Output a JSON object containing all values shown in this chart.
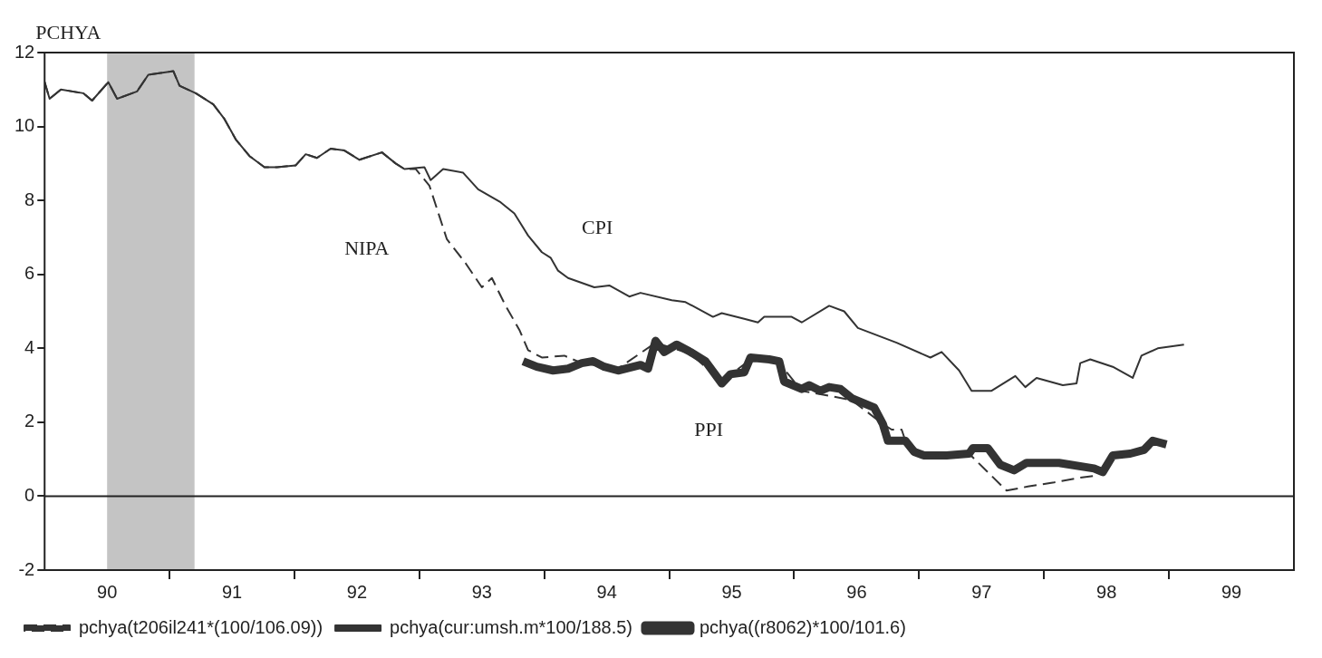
{
  "chart_data": {
    "type": "line",
    "ylabel": "PCHYA",
    "xlim": [
      89.5,
      99.5
    ],
    "xticks": [
      90,
      {
        "value": 90.5,
        "label": null
      },
      91,
      {
        "value": 91.5,
        "label": null
      },
      92,
      {
        "value": 92.5,
        "label": null
      },
      93,
      {
        "value": 93.5,
        "label": null
      },
      94,
      {
        "value": 94.5,
        "label": null
      },
      95,
      {
        "value": 95.5,
        "label": null
      },
      96,
      {
        "value": 96.5,
        "label": null
      },
      97,
      {
        "value": 97.5,
        "label": null
      },
      98,
      {
        "value": 98.5,
        "label": null
      },
      99
    ],
    "ylim": [
      -2,
      12
    ],
    "yticks": [
      -2,
      0,
      2,
      4,
      6,
      8,
      10,
      12
    ],
    "legend": "bottom left",
    "ref_lines": [
      {
        "axis": "y",
        "value": 0,
        "color": "#222222"
      }
    ],
    "bands": [
      {
        "axis": "x",
        "from": 90.0,
        "to": 90.7,
        "color": "#c4c4c4"
      }
    ],
    "annotations": [
      "NIPA",
      "CPI",
      "PPI"
    ],
    "series": [
      {
        "name": "pchya(t206il241*(100/106.09))",
        "color": "#333333",
        "line_style": "dashed",
        "x": [
          89.5,
          89.54,
          89.63,
          89.81,
          89.88,
          90.01,
          90.08,
          90.24,
          90.33,
          90.53,
          90.58,
          90.71,
          90.85,
          90.94,
          91.03,
          91.14,
          91.26,
          91.36,
          91.51,
          91.59,
          91.68,
          91.79,
          91.9,
          92.02,
          92.2,
          92.31,
          92.38,
          92.47,
          92.58,
          92.72,
          92.87,
          93.0,
          93.08,
          93.19,
          93.3,
          93.37,
          93.48,
          93.66,
          93.8,
          94.09,
          94.39,
          94.67,
          94.92,
          95.15,
          95.38,
          95.56,
          95.96,
          96.21,
          96.28,
          96.36,
          96.39,
          96.54,
          96.9,
          97.2,
          97.37,
          97.58,
          97.79,
          97.9
        ],
        "values": [
          11.2,
          10.75,
          11.0,
          10.9,
          10.7,
          11.2,
          10.75,
          10.95,
          11.4,
          11.5,
          11.1,
          10.9,
          10.6,
          10.2,
          9.65,
          9.2,
          8.9,
          8.9,
          8.95,
          9.25,
          9.15,
          9.4,
          9.35,
          9.1,
          9.3,
          9.0,
          8.85,
          8.85,
          8.4,
          6.95,
          6.3,
          5.65,
          5.9,
          5.15,
          4.5,
          3.95,
          3.75,
          3.8,
          3.6,
          3.45,
          4.15,
          3.85,
          3.1,
          3.7,
          3.6,
          2.85,
          2.6,
          1.95,
          1.8,
          1.8,
          1.5,
          1.1,
          1.15,
          0.15,
          0.26,
          0.37,
          0.5,
          0.55
        ]
      },
      {
        "name": "pchya(cur:umsh.m*100/188.5)",
        "color": "#333333",
        "line_style": "solid",
        "x": [
          89.5,
          89.54,
          89.63,
          89.81,
          89.88,
          90.01,
          90.08,
          90.24,
          90.33,
          90.53,
          90.58,
          90.71,
          90.85,
          90.94,
          91.03,
          91.14,
          91.26,
          91.36,
          91.51,
          91.59,
          91.68,
          91.79,
          91.9,
          92.02,
          92.2,
          92.31,
          92.38,
          92.54,
          92.59,
          92.69,
          92.85,
          92.97,
          93.15,
          93.26,
          93.37,
          93.48,
          93.55,
          93.61,
          93.69,
          93.9,
          94.02,
          94.18,
          94.27,
          94.52,
          94.63,
          94.85,
          94.92,
          95.1,
          95.21,
          95.26,
          95.48,
          95.56,
          95.78,
          95.9,
          96.01,
          96.32,
          96.59,
          96.68,
          96.82,
          96.92,
          97.08,
          97.27,
          97.35,
          97.44,
          97.65,
          97.76,
          97.79,
          97.87,
          98.05,
          98.21,
          98.28,
          98.41,
          98.62
        ],
        "values": [
          11.2,
          10.75,
          11.0,
          10.9,
          10.7,
          11.2,
          10.75,
          10.95,
          11.4,
          11.5,
          11.1,
          10.9,
          10.6,
          10.2,
          9.65,
          9.2,
          8.9,
          8.9,
          8.95,
          9.25,
          9.15,
          9.4,
          9.35,
          9.1,
          9.3,
          9.0,
          8.85,
          8.9,
          8.55,
          8.85,
          8.75,
          8.3,
          7.95,
          7.65,
          7.05,
          6.6,
          6.45,
          6.1,
          5.9,
          5.65,
          5.7,
          5.4,
          5.5,
          5.3,
          5.25,
          4.85,
          4.95,
          4.8,
          4.7,
          4.85,
          4.85,
          4.7,
          5.15,
          5.0,
          4.55,
          4.15,
          3.75,
          3.9,
          3.4,
          2.85,
          2.85,
          3.25,
          2.95,
          3.2,
          3.0,
          3.05,
          3.6,
          3.7,
          3.5,
          3.2,
          3.8,
          4.0,
          4.1
        ]
      },
      {
        "name": "pchya((r8062)*100/101.6)",
        "color": "#333333",
        "line_style": "solid",
        "x": [
          93.33,
          93.44,
          93.57,
          93.69,
          93.8,
          93.89,
          93.98,
          94.09,
          94.27,
          94.33,
          94.39,
          94.46,
          94.56,
          94.67,
          94.79,
          94.92,
          94.99,
          95.1,
          95.15,
          95.3,
          95.38,
          95.42,
          95.56,
          95.62,
          95.71,
          95.78,
          95.87,
          95.96,
          96.14,
          96.21,
          96.25,
          96.39,
          96.46,
          96.54,
          96.72,
          96.9,
          96.93,
          97.05,
          97.15,
          97.26,
          97.36,
          97.62,
          97.9,
          97.97,
          98.05,
          98.19,
          98.3,
          98.37,
          98.48
        ],
        "values": [
          3.65,
          3.5,
          3.4,
          3.45,
          3.6,
          3.65,
          3.5,
          3.4,
          3.55,
          3.45,
          4.2,
          3.9,
          4.1,
          3.9,
          3.65,
          3.05,
          3.3,
          3.35,
          3.75,
          3.7,
          3.65,
          3.1,
          2.9,
          3.0,
          2.85,
          2.95,
          2.9,
          2.65,
          2.4,
          1.95,
          1.5,
          1.5,
          1.2,
          1.1,
          1.1,
          1.15,
          1.3,
          1.3,
          0.85,
          0.7,
          0.9,
          0.9,
          0.75,
          0.65,
          1.1,
          1.15,
          1.25,
          1.5,
          1.4
        ]
      }
    ]
  }
}
